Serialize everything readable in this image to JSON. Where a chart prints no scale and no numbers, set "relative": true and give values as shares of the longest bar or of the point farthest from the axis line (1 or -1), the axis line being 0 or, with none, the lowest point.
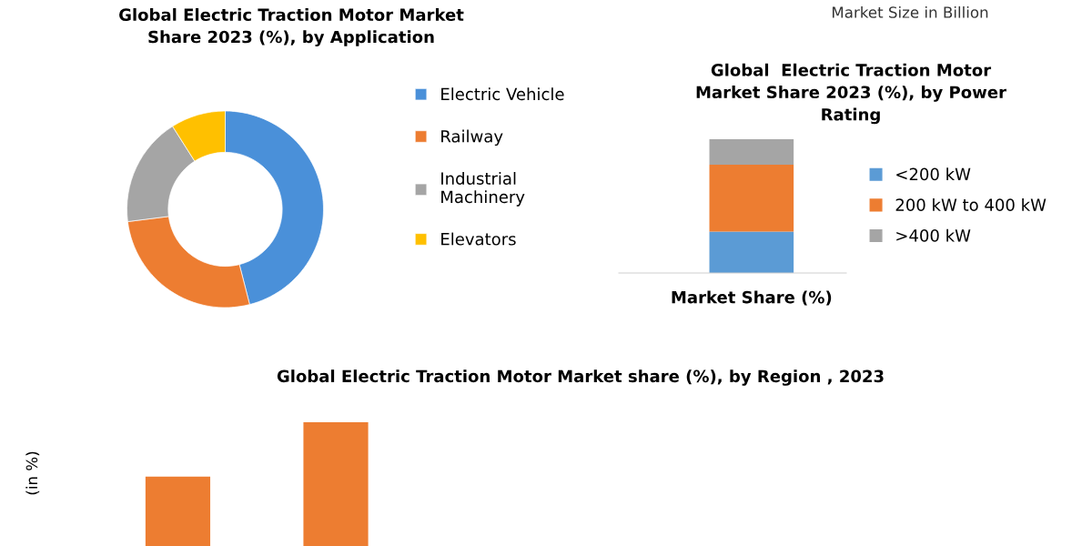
{
  "chart_data": [
    {
      "type": "donut",
      "title": "Global Electric Traction Motor Market\nShare 2023 (%), by Application",
      "categories": [
        "Electric Vehicle",
        "Railway",
        "Industrial\nMachinery",
        "Elevators"
      ],
      "values": [
        46,
        27,
        18,
        9
      ],
      "colors": [
        "#4a90d9",
        "#ed7d31",
        "#a5a5a5",
        "#ffc000"
      ],
      "legend": "right"
    },
    {
      "type": "bar",
      "title": "Global  Electric Traction Motor\nMarket Share 2023 (%), by Power\nRating",
      "annotations": [
        "Market Size in Billion"
      ],
      "categories": [
        "Market Share (%)"
      ],
      "stacked": true,
      "relative": true,
      "legend": "right",
      "series": [
        {
          "name": "<200 kW",
          "color": "#5b9bd5",
          "values": [
            0.31
          ]
        },
        {
          "name": "200 kW to 400 kW",
          "color": "#ed7d31",
          "values": [
            0.5
          ]
        },
        {
          "name": ">400 kW",
          "color": "#a5a5a5",
          "values": [
            0.19
          ]
        }
      ]
    },
    {
      "type": "bar",
      "title": "Global Electric Traction Motor Market share (%), by Region , 2023",
      "ylabel": "(in %)",
      "categories": [
        null,
        null
      ],
      "relative": true,
      "series": [
        {
          "color": "#ed7d31",
          "values": [
            0.56,
            1
          ]
        }
      ]
    }
  ]
}
